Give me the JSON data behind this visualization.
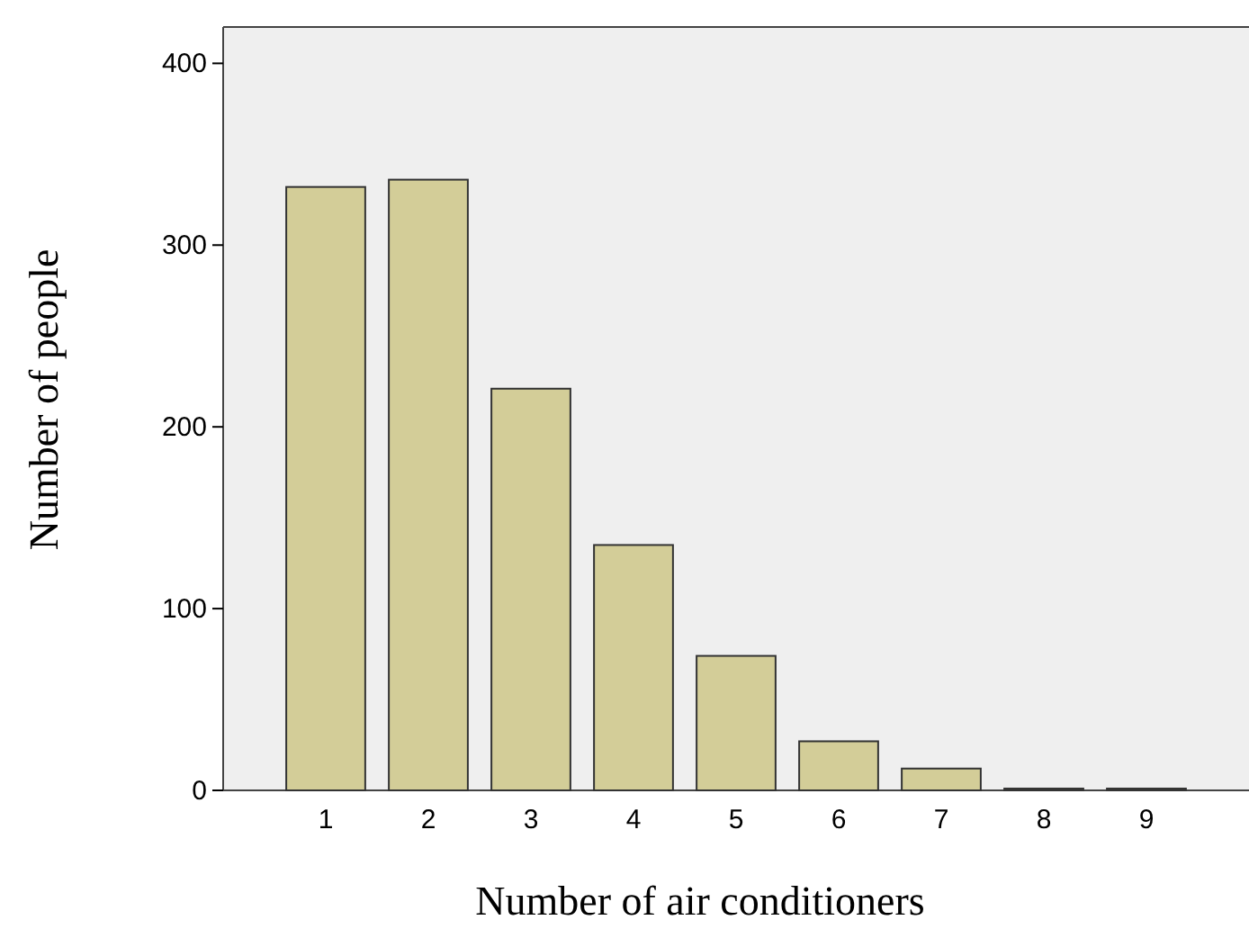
{
  "chart_data": {
    "type": "bar",
    "xlabel": "Number of air conditioners",
    "ylabel": "Number of people",
    "categories": [
      "1",
      "2",
      "3",
      "4",
      "5",
      "6",
      "7",
      "8",
      "9"
    ],
    "values": [
      332,
      336,
      221,
      135,
      74,
      27,
      12,
      1,
      1
    ],
    "color": "#d3cd98",
    "ylim": [
      0,
      420
    ],
    "yticks": [
      0,
      100,
      200,
      300,
      400
    ],
    "grid": false
  }
}
